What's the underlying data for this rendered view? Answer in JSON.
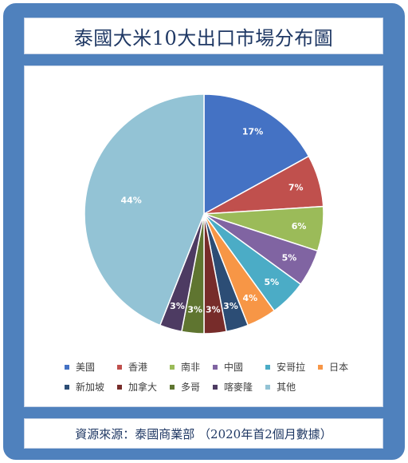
{
  "title": "泰國大米10大出口市場分布圖",
  "source": "資源來源：泰國商業部  （2020年首2個月數據）",
  "chart_data": {
    "type": "pie",
    "title": "",
    "legend_position": "bottom",
    "slices": [
      {
        "label": "美國",
        "value": 17,
        "display": "17%",
        "color": "#4472c4"
      },
      {
        "label": "香港",
        "value": 7,
        "display": "7%",
        "color": "#c0504d"
      },
      {
        "label": "南非",
        "value": 6,
        "display": "6%",
        "color": "#9bbb59"
      },
      {
        "label": "中國",
        "value": 5,
        "display": "5%",
        "color": "#8064a2"
      },
      {
        "label": "安哥拉",
        "value": 5,
        "display": "5%",
        "color": "#4bacc6"
      },
      {
        "label": "日本",
        "value": 4,
        "display": "4%",
        "color": "#f79646"
      },
      {
        "label": "新加坡",
        "value": 3,
        "display": "3%",
        "color": "#2c4d75"
      },
      {
        "label": "加拿大",
        "value": 3,
        "display": "3%",
        "color": "#772c2a"
      },
      {
        "label": "多哥",
        "value": 3,
        "display": "3%",
        "color": "#5f7530"
      },
      {
        "label": "喀麥隆",
        "value": 3,
        "display": "3%",
        "color": "#4d3b62"
      },
      {
        "label": "其他",
        "value": 44,
        "display": "44%",
        "color": "#93c3d5"
      }
    ]
  }
}
